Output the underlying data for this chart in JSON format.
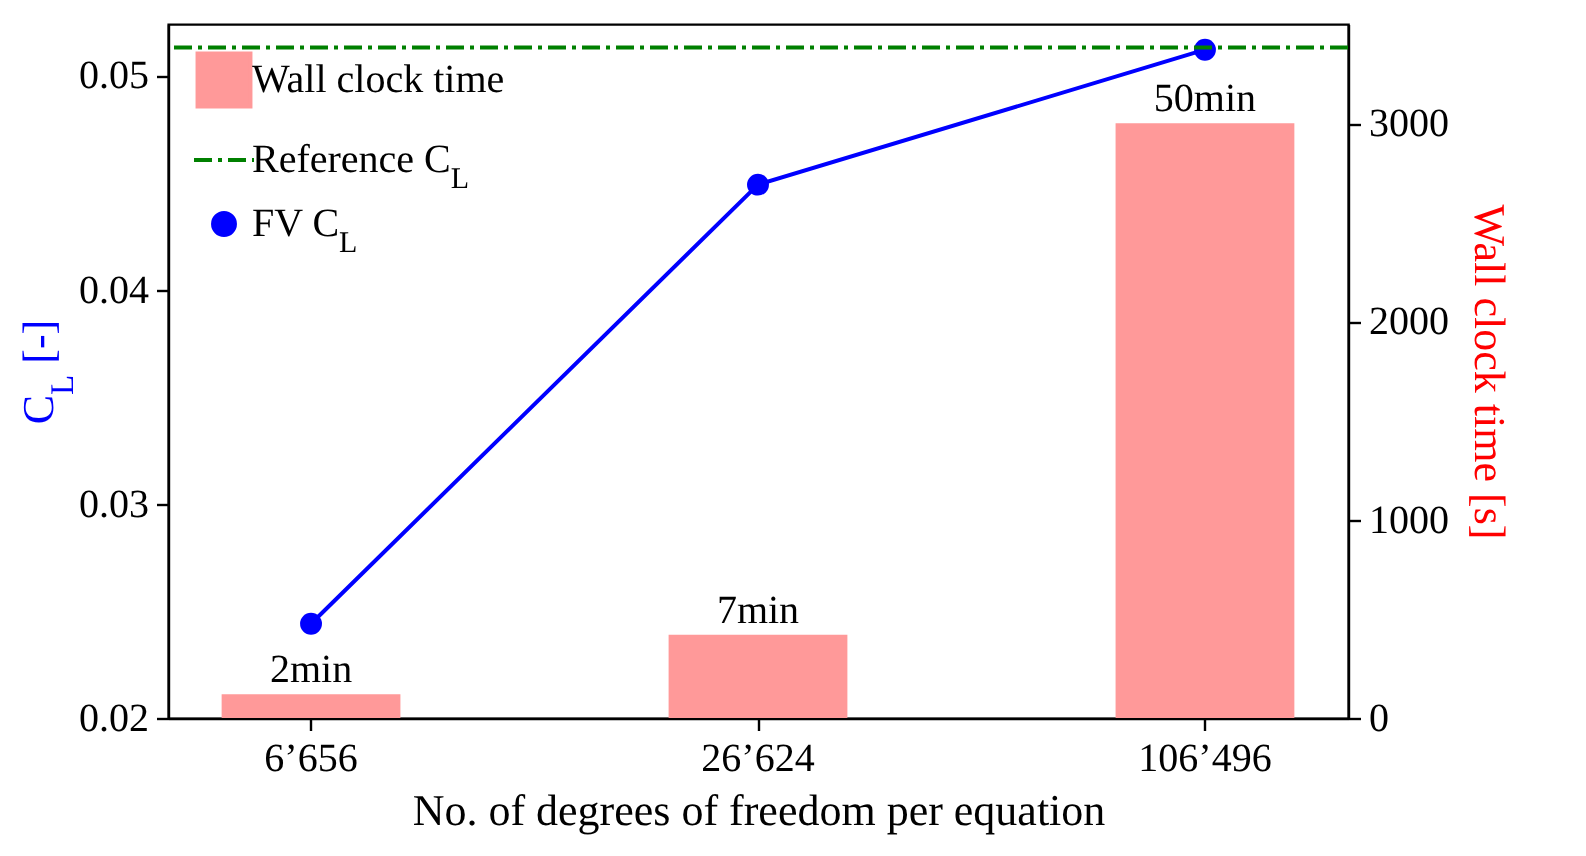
{
  "chart_data": {
    "type": "bar",
    "xlabel": "No. of degrees of freedom per equation",
    "ylabel": "C$_{L}$ [-]",
    "y2label": "Wall clock time [s]",
    "categories": [
      "6’656",
      "26’624",
      "106’496"
    ],
    "series": [
      {
        "name": "Wall clock time",
        "axis": "y2",
        "color": "#ff9999",
        "values": [
          120,
          420,
          3000
        ]
      },
      {
        "name": "FV C$_{L}$",
        "type": "line",
        "color": "#0000ff",
        "marker": "circle",
        "line_style": "solid",
        "values": [
          0.0244,
          0.0449,
          0.0512
        ]
      }
    ],
    "annotations": [
      "2min",
      "7min",
      "50min"
    ],
    "ref_lines": [
      {
        "axis": "y",
        "value": 0.0513,
        "label": "Reference C$_{L}$",
        "color": "#008000",
        "line_style": "dashdot"
      }
    ],
    "ylim": [
      0.02,
      0.0524
    ],
    "yticks": [
      0.02,
      0.03,
      0.04,
      0.05
    ],
    "y2lim": [
      0,
      3500
    ],
    "y2ticks": [
      0,
      1000,
      2000,
      3000
    ],
    "legend": "top left",
    "grid": false
  }
}
